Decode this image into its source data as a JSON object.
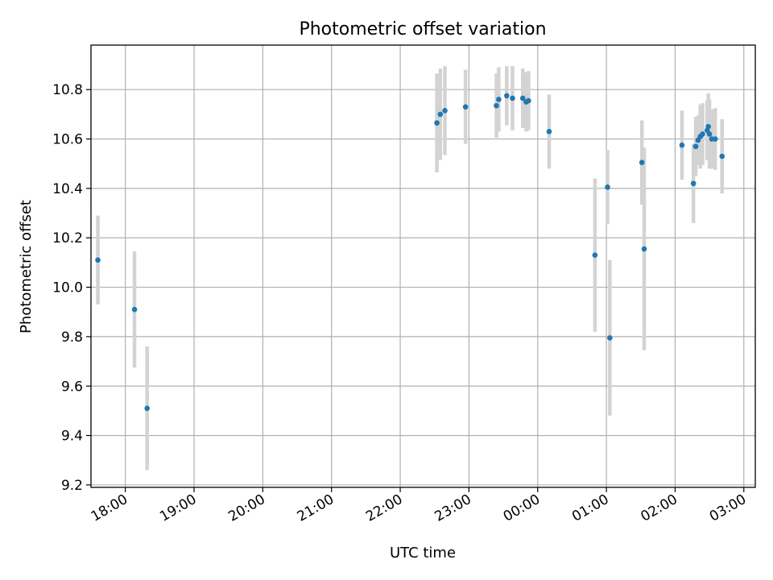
{
  "chart_data": {
    "type": "scatter",
    "title": "Photometric offset variation",
    "xlabel": "UTC time",
    "ylabel": "Photometric offset",
    "xlim": [
      "17:30",
      "03:10"
    ],
    "ylim": [
      9.19,
      10.98
    ],
    "x_ticks": [
      "18:00",
      "19:00",
      "20:00",
      "21:00",
      "22:00",
      "23:00",
      "00:00",
      "01:00",
      "02:00",
      "03:00"
    ],
    "y_ticks": [
      "9.2",
      "9.4",
      "9.6",
      "9.8",
      "10.0",
      "10.2",
      "10.4",
      "10.6",
      "10.8"
    ],
    "grid": true,
    "marker_color": "#1f77b4",
    "errorbar_color": "#d3d3d3",
    "points": [
      {
        "t": "17:36",
        "y": 10.11,
        "err": 0.18
      },
      {
        "t": "18:08",
        "y": 9.91,
        "err": 0.235
      },
      {
        "t": "18:19",
        "y": 9.51,
        "err": 0.25
      },
      {
        "t": "22:32",
        "y": 10.665,
        "err": 0.2
      },
      {
        "t": "22:35",
        "y": 10.7,
        "err": 0.185
      },
      {
        "t": "22:39",
        "y": 10.715,
        "err": 0.18
      },
      {
        "t": "22:57",
        "y": 10.73,
        "err": 0.15
      },
      {
        "t": "23:24",
        "y": 10.735,
        "err": 0.13
      },
      {
        "t": "23:26",
        "y": 10.76,
        "err": 0.13
      },
      {
        "t": "23:33",
        "y": 10.775,
        "err": 0.12
      },
      {
        "t": "23:38",
        "y": 10.765,
        "err": 0.13
      },
      {
        "t": "23:47",
        "y": 10.765,
        "err": 0.12
      },
      {
        "t": "23:50",
        "y": 10.75,
        "err": 0.12
      },
      {
        "t": "23:52",
        "y": 10.755,
        "err": 0.12
      },
      {
        "t": "00:10",
        "y": 10.63,
        "err": 0.15
      },
      {
        "t": "00:50",
        "y": 10.13,
        "err": 0.31
      },
      {
        "t": "01:01",
        "y": 10.405,
        "err": 0.15
      },
      {
        "t": "01:03",
        "y": 9.795,
        "err": 0.315
      },
      {
        "t": "01:31",
        "y": 10.505,
        "err": 0.17
      },
      {
        "t": "01:33",
        "y": 10.155,
        "err": 0.41
      },
      {
        "t": "02:06",
        "y": 10.575,
        "err": 0.14
      },
      {
        "t": "02:16",
        "y": 10.42,
        "err": 0.16
      },
      {
        "t": "02:18",
        "y": 10.57,
        "err": 0.12
      },
      {
        "t": "02:20",
        "y": 10.595,
        "err": 0.1
      },
      {
        "t": "02:22",
        "y": 10.61,
        "err": 0.13
      },
      {
        "t": "02:24",
        "y": 10.62,
        "err": 0.125
      },
      {
        "t": "02:28",
        "y": 10.635,
        "err": 0.12
      },
      {
        "t": "02:29",
        "y": 10.65,
        "err": 0.135
      },
      {
        "t": "02:30",
        "y": 10.62,
        "err": 0.14
      },
      {
        "t": "02:32",
        "y": 10.6,
        "err": 0.12
      },
      {
        "t": "02:35",
        "y": 10.6,
        "err": 0.125
      },
      {
        "t": "02:41",
        "y": 10.53,
        "err": 0.15
      }
    ]
  }
}
